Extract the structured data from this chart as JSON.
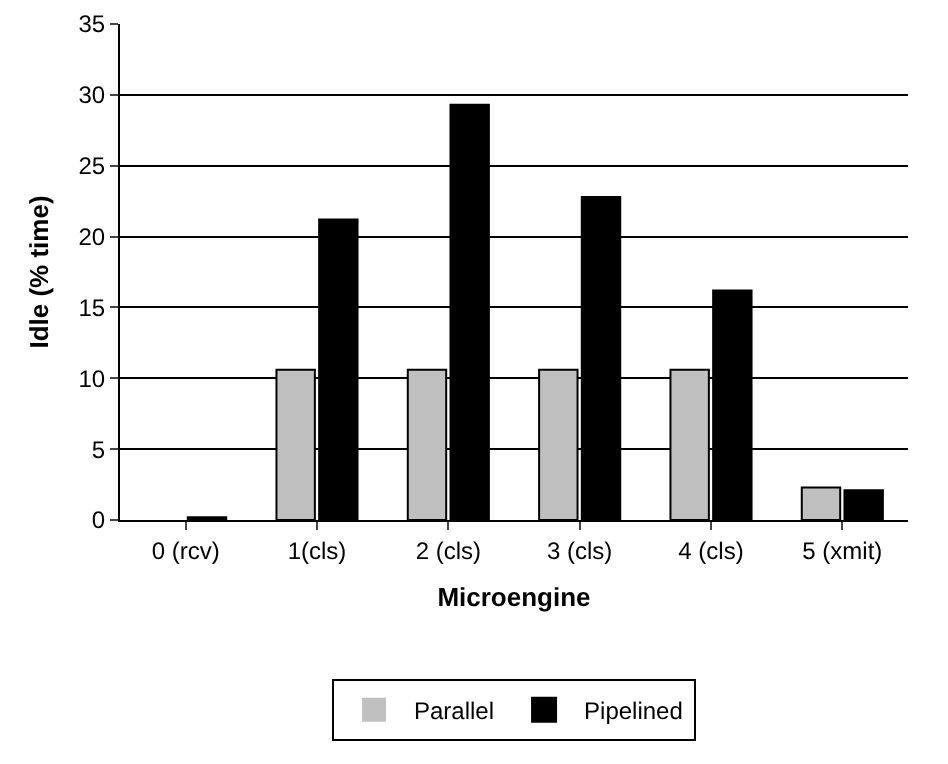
{
  "chart_data": {
    "type": "bar",
    "xlabel": "Microengine",
    "ylabel": "Idle (% time)",
    "categories": [
      "0 (rcv)",
      "1(cls)",
      "2 (cls)",
      "3 (cls)",
      "4 (cls)",
      "5 (xmit)"
    ],
    "series": [
      {
        "name": "Parallel",
        "color": "#c0c0c0",
        "values": [
          0,
          10.6,
          10.6,
          10.6,
          10.6,
          2.3
        ]
      },
      {
        "name": "Pipelined",
        "color": "#000000",
        "values": [
          0.2,
          21.2,
          29.3,
          22.8,
          16.2,
          2.1
        ]
      }
    ],
    "ylim": [
      0,
      35
    ],
    "yticks": [
      0,
      5,
      10,
      15,
      20,
      25,
      30,
      35
    ],
    "grid": "y",
    "legend": "bottom"
  }
}
